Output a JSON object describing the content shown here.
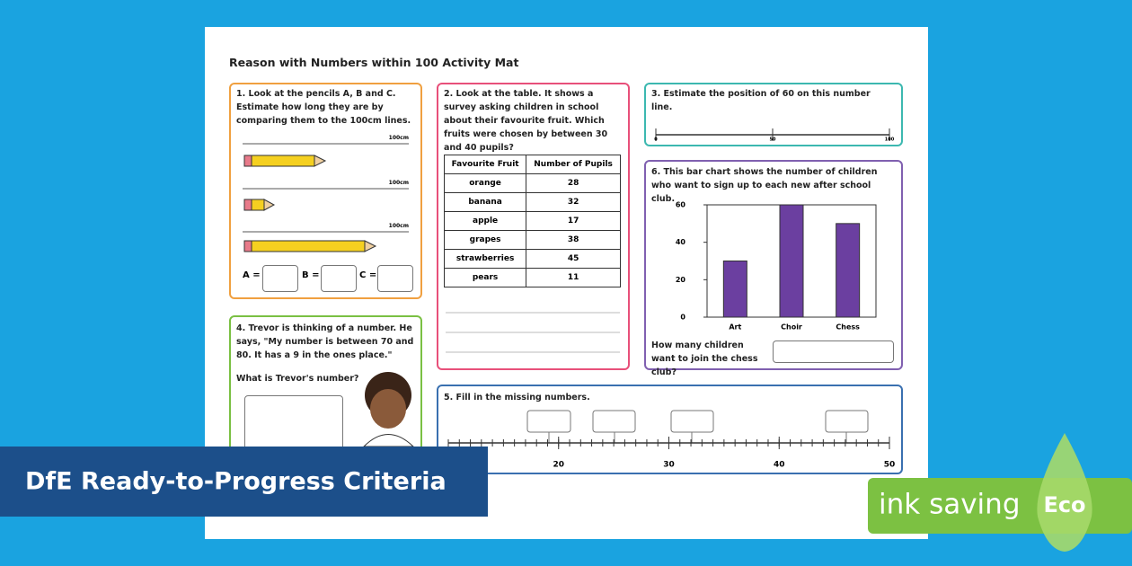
{
  "title": "Reason with Numbers within 100 Activity Mat",
  "q1": {
    "text": "1. Look at the pencils A, B and C. Estimate how long they are by comparing them to the 100cm lines.",
    "line_label": "100cm",
    "answers": [
      "A =",
      "B =",
      "C ="
    ]
  },
  "q2": {
    "text": "2. Look at the table. It shows a survey asking children in school about their favourite fruit. Which fruits were chosen by between 30 and 40 pupils?",
    "table": {
      "headers": [
        "Favourite Fruit",
        "Number of Pupils"
      ],
      "rows": [
        [
          "orange",
          28
        ],
        [
          "banana",
          32
        ],
        [
          "apple",
          17
        ],
        [
          "grapes",
          38
        ],
        [
          "strawberries",
          45
        ],
        [
          "pears",
          11
        ]
      ]
    }
  },
  "q3": {
    "text": "3. Estimate the position of 60 on this number line.",
    "number_line": {
      "xlim": [
        0,
        100
      ],
      "xticks": [
        0,
        50,
        100
      ]
    }
  },
  "q4": {
    "text": "4. Trevor is thinking of a number. He says, \"My number is between 70 and 80. It has a 9 in the ones place.\"",
    "question": "What is Trevor's number?"
  },
  "q5": {
    "text": "5. Fill in the missing numbers.",
    "number_line": {
      "xlim": [
        10,
        50
      ],
      "xticks": [
        20,
        30,
        40,
        50
      ]
    }
  },
  "q6": {
    "text": "6. This bar chart shows the number of children who want to sign up to each new after school club.",
    "question": "How many children want to join the chess club?"
  },
  "chart_data": {
    "type": "bar",
    "categories": [
      "Art",
      "Choir",
      "Chess"
    ],
    "values": [
      30,
      60,
      50
    ],
    "color": "#6b3fa0",
    "ylim": [
      0,
      60
    ],
    "yticks": [
      0,
      20,
      40,
      60
    ]
  },
  "banner": "DfE Ready-to-Progress Criteria",
  "eco": {
    "label": "ink saving",
    "badge": "Eco"
  }
}
